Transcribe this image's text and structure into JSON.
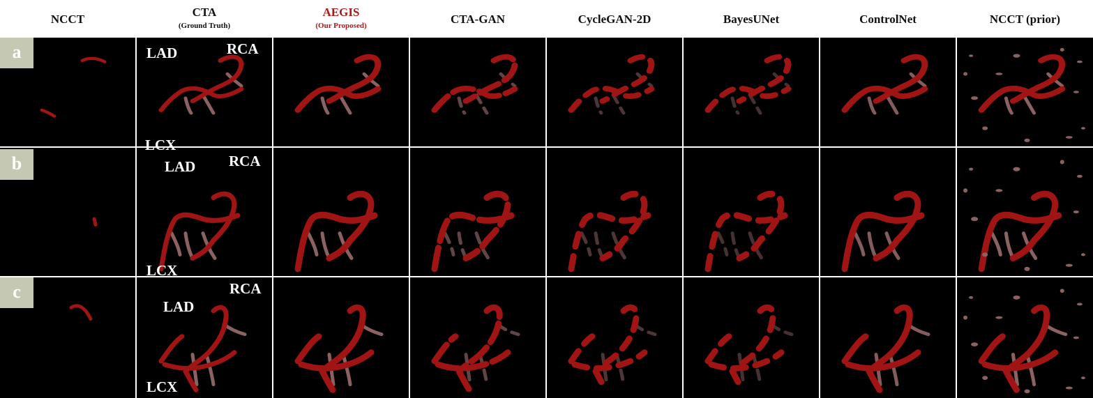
{
  "columns": [
    {
      "title": "NCCT",
      "subtitle": ""
    },
    {
      "title": "CTA",
      "subtitle": "(Ground Truth)"
    },
    {
      "title": "AEGIS",
      "subtitle": "(Our Proposed)"
    },
    {
      "title": "CTA-GAN",
      "subtitle": ""
    },
    {
      "title": "CycleGAN-2D",
      "subtitle": ""
    },
    {
      "title": "BayesUNet",
      "subtitle": ""
    },
    {
      "title": "ControlNet",
      "subtitle": ""
    },
    {
      "title": "NCCT (prior)",
      "subtitle": ""
    }
  ],
  "rows": [
    {
      "label": "a"
    },
    {
      "label": "b"
    },
    {
      "label": "c"
    }
  ],
  "annotations": {
    "lad": "LAD",
    "rca": "RCA",
    "lcx": "LCX"
  },
  "colors": {
    "vessel_main": "#a01414",
    "vessel_branch": "#8a6262",
    "highlight_title": "#b01818",
    "row_label_bg": "#c5c8b2"
  }
}
